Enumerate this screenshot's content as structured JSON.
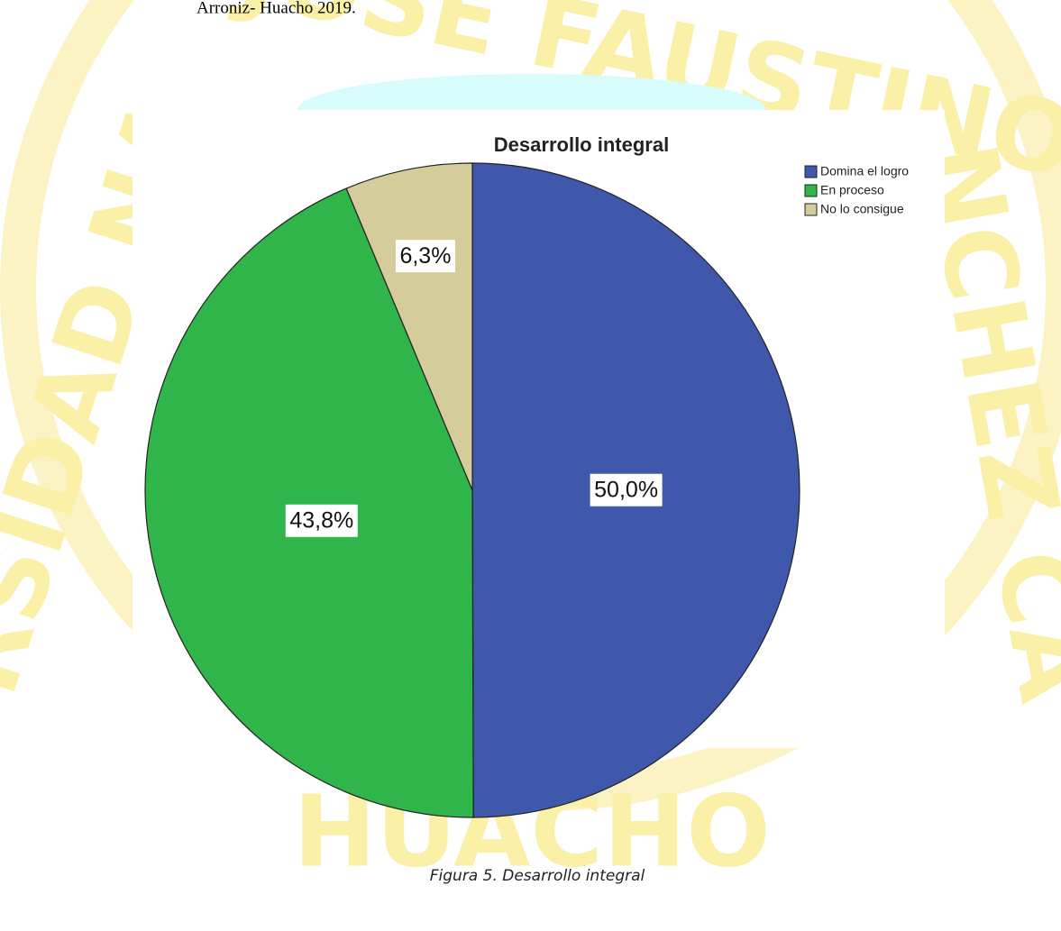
{
  "header_text": "Arroniz- Huacho 2019.",
  "watermark": [
    "NAL JOSÉ FAUSTINO",
    "RSIDAD NA",
    "NCHEZ CA",
    "HUACHO"
  ],
  "chart_data": {
    "type": "pie",
    "title": "Desarrollo integral",
    "categories": [
      "Domina el logro",
      "En proceso",
      "No lo consigue"
    ],
    "values": [
      50.0,
      43.8,
      6.3
    ],
    "value_labels": [
      "50,0%",
      "43,8%",
      "6,3%"
    ],
    "colors": [
      "#3f58ab",
      "#2fb54a",
      "#d5cc9b"
    ],
    "legend": "upper right"
  },
  "caption": "Figura 5. Desarrollo integral"
}
